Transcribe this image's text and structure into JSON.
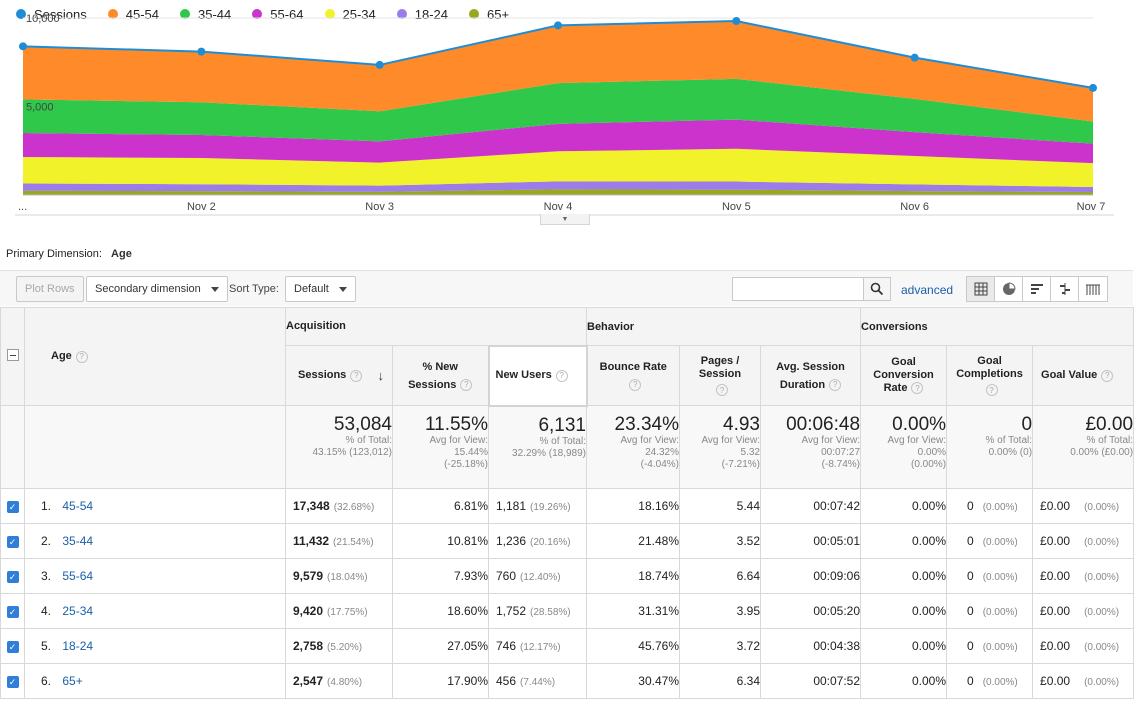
{
  "legend": [
    {
      "name": "Sessions",
      "color": "#1f8dd6"
    },
    {
      "name": "45-54",
      "color": "#ff8a2a"
    },
    {
      "name": "35-44",
      "color": "#2fc84a"
    },
    {
      "name": "55-64",
      "color": "#cc33cc"
    },
    {
      "name": "25-34",
      "color": "#f2f22a"
    },
    {
      "name": "18-24",
      "color": "#9b7ce8"
    },
    {
      "name": "65+",
      "color": "#9aa81f"
    }
  ],
  "chart_data": {
    "type": "area",
    "x": [
      "...",
      "Nov 2",
      "Nov 3",
      "Nov 4",
      "Nov 5",
      "Nov 6",
      "Nov 7"
    ],
    "y_ticks": [
      "10,000",
      "5,000"
    ],
    "ylim": [
      0,
      10000
    ],
    "sessions": [
      8400,
      8100,
      7350,
      9580,
      9830,
      7760,
      6050
    ],
    "stacked_series": [
      {
        "name": "65+",
        "values": [
          240,
          220,
          180,
          320,
          300,
          220,
          170
        ]
      },
      {
        "name": "18-24",
        "values": [
          410,
          390,
          350,
          450,
          460,
          380,
          280
        ]
      },
      {
        "name": "25-34",
        "values": [
          1500,
          1480,
          1300,
          1700,
          1850,
          1600,
          1350
        ]
      },
      {
        "name": "55-64",
        "values": [
          1350,
          1300,
          1200,
          1550,
          1650,
          1350,
          1100
        ]
      },
      {
        "name": "35-44",
        "values": [
          1900,
          1850,
          1700,
          2300,
          2300,
          1880,
          1250
        ]
      },
      {
        "name": "45-54",
        "values": [
          3000,
          2860,
          2620,
          3260,
          3270,
          2330,
          1900
        ]
      }
    ]
  },
  "primary_dimension": {
    "label": "Primary Dimension:",
    "value": "Age"
  },
  "toolbar": {
    "plot_rows": "Plot Rows",
    "secondary_dimension": "Secondary dimension",
    "sort_type_label": "Sort Type:",
    "sort_type_value": "Default",
    "search_placeholder": "",
    "advanced": "advanced"
  },
  "table": {
    "groups": {
      "acquisition": "Acquisition",
      "behavior": "Behavior",
      "conversions": "Conversions"
    },
    "headers": {
      "age": "Age",
      "sessions": "Sessions",
      "new_sessions_1": "% New",
      "new_sessions_2": "Sessions",
      "new_users": "New Users",
      "bounce_rate": "Bounce Rate",
      "pages_1": "Pages /",
      "pages_2": "Session",
      "duration_1": "Avg. Session",
      "duration_2": "Duration",
      "gcr_1": "Goal",
      "gcr_2": "Conversion",
      "gcr_3": "Rate",
      "gc_1": "Goal",
      "gc_2": "Completions",
      "gv": "Goal Value"
    },
    "totals": {
      "sessions": {
        "big": "53,084",
        "l1": "% of Total:",
        "l2": "43.15% (123,012)"
      },
      "new_sessions": {
        "big": "11.55%",
        "l1": "Avg for View:",
        "l2": "15.44%",
        "l3": "(-25.18%)"
      },
      "new_users": {
        "big": "6,131",
        "l1": "% of Total:",
        "l2": "32.29% (18,989)"
      },
      "bounce_rate": {
        "big": "23.34%",
        "l1": "Avg for View:",
        "l2": "24.32%",
        "l3": "(-4.04%)"
      },
      "pages": {
        "big": "4.93",
        "l1": "Avg for View:",
        "l2": "5.32",
        "l3": "(-7.21%)"
      },
      "duration": {
        "big": "00:06:48",
        "l1": "Avg for View:",
        "l2": "00:07:27",
        "l3": "(-8.74%)"
      },
      "gcr": {
        "big": "0.00%",
        "l1": "Avg for View:",
        "l2": "0.00%",
        "l3": "(0.00%)"
      },
      "gc": {
        "big": "0",
        "l1": "% of Total:",
        "l2": "0.00% (0)"
      },
      "gv": {
        "big": "£0.00",
        "l1": "% of Total:",
        "l2": "0.00% (£0.00)"
      }
    },
    "rows": [
      {
        "idx": "1.",
        "age": "45-54",
        "sessions": "17,348",
        "sessions_pct": "(32.68%)",
        "new_sessions": "6.81%",
        "new_users": "1,181",
        "new_users_pct": "(19.26%)",
        "bounce": "18.16%",
        "pages": "5.44",
        "duration": "00:07:42",
        "gcr": "0.00%",
        "gc": "0",
        "gc_pct": "(0.00%)",
        "gv": "£0.00",
        "gv_pct": "(0.00%)"
      },
      {
        "idx": "2.",
        "age": "35-44",
        "sessions": "11,432",
        "sessions_pct": "(21.54%)",
        "new_sessions": "10.81%",
        "new_users": "1,236",
        "new_users_pct": "(20.16%)",
        "bounce": "21.48%",
        "pages": "3.52",
        "duration": "00:05:01",
        "gcr": "0.00%",
        "gc": "0",
        "gc_pct": "(0.00%)",
        "gv": "£0.00",
        "gv_pct": "(0.00%)"
      },
      {
        "idx": "3.",
        "age": "55-64",
        "sessions": "9,579",
        "sessions_pct": "(18.04%)",
        "new_sessions": "7.93%",
        "new_users": "760",
        "new_users_pct": "(12.40%)",
        "bounce": "18.74%",
        "pages": "6.64",
        "duration": "00:09:06",
        "gcr": "0.00%",
        "gc": "0",
        "gc_pct": "(0.00%)",
        "gv": "£0.00",
        "gv_pct": "(0.00%)"
      },
      {
        "idx": "4.",
        "age": "25-34",
        "sessions": "9,420",
        "sessions_pct": "(17.75%)",
        "new_sessions": "18.60%",
        "new_users": "1,752",
        "new_users_pct": "(28.58%)",
        "bounce": "31.31%",
        "pages": "3.95",
        "duration": "00:05:20",
        "gcr": "0.00%",
        "gc": "0",
        "gc_pct": "(0.00%)",
        "gv": "£0.00",
        "gv_pct": "(0.00%)"
      },
      {
        "idx": "5.",
        "age": "18-24",
        "sessions": "2,758",
        "sessions_pct": "(5.20%)",
        "new_sessions": "27.05%",
        "new_users": "746",
        "new_users_pct": "(12.17%)",
        "bounce": "45.76%",
        "pages": "3.72",
        "duration": "00:04:38",
        "gcr": "0.00%",
        "gc": "0",
        "gc_pct": "(0.00%)",
        "gv": "£0.00",
        "gv_pct": "(0.00%)"
      },
      {
        "idx": "6.",
        "age": "65+",
        "sessions": "2,547",
        "sessions_pct": "(4.80%)",
        "new_sessions": "17.90%",
        "new_users": "456",
        "new_users_pct": "(7.44%)",
        "bounce": "30.47%",
        "pages": "6.34",
        "duration": "00:07:52",
        "gcr": "0.00%",
        "gc": "0",
        "gc_pct": "(0.00%)",
        "gv": "£0.00",
        "gv_pct": "(0.00%)"
      }
    ]
  }
}
